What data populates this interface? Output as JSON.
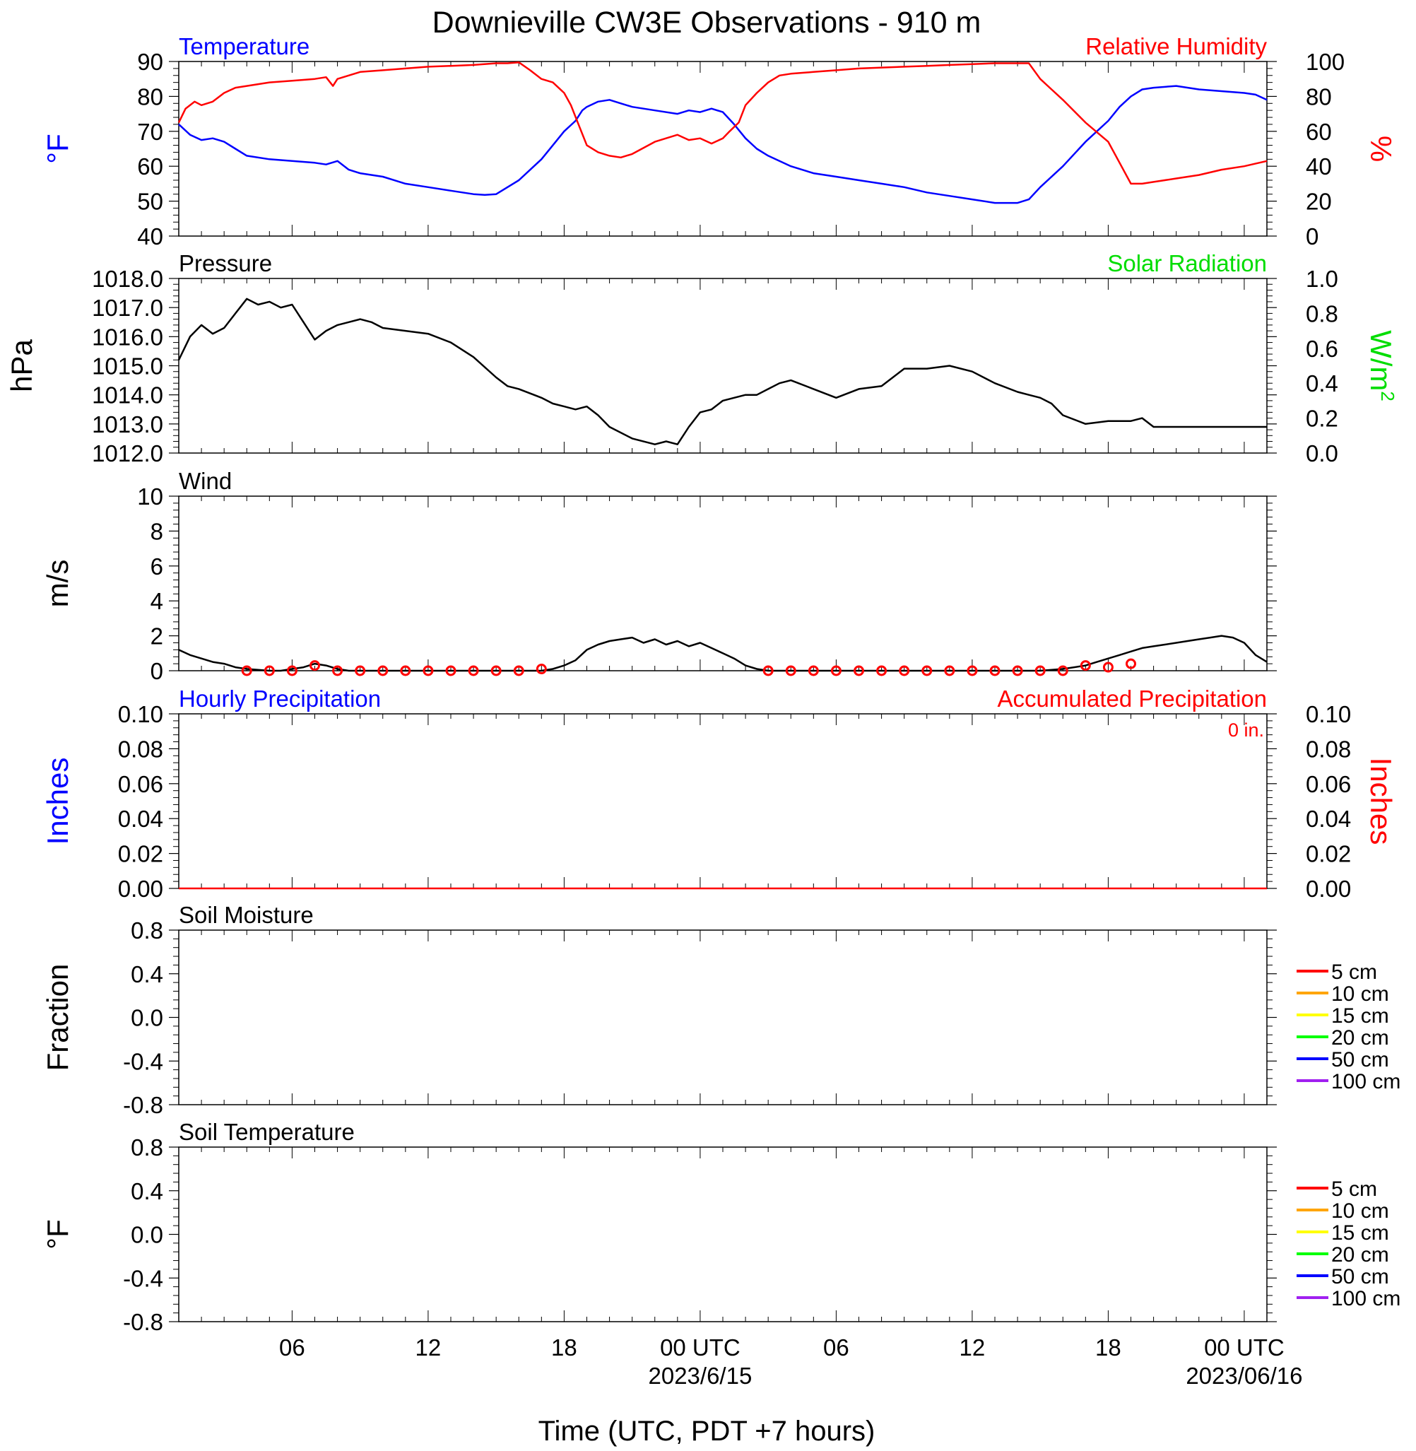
{
  "page_title": "Downieville CW3E Observations - 910 m",
  "x_axis": {
    "label": "Time (UTC, PDT +7 hours)",
    "range_hours": [
      0,
      48
    ],
    "ticks": [
      {
        "hour": 5,
        "label": "06",
        "date": ""
      },
      {
        "hour": 11,
        "label": "12",
        "date": ""
      },
      {
        "hour": 17,
        "label": "18",
        "date": ""
      },
      {
        "hour": 23,
        "label": "00 UTC",
        "date": "2023/6/15"
      },
      {
        "hour": 29,
        "label": "06",
        "date": ""
      },
      {
        "hour": 35,
        "label": "12",
        "date": ""
      },
      {
        "hour": 41,
        "label": "18",
        "date": ""
      },
      {
        "hour": 47,
        "label": "00 UTC",
        "date": "2023/06/16"
      }
    ]
  },
  "chart_data": [
    {
      "id": "temp_rh",
      "type": "line",
      "title_left": "Temperature",
      "title_right": "Relative Humidity",
      "ylabel_left": "°F",
      "ylabel_right": "%",
      "ylim_left": [
        40,
        90
      ],
      "ylim_right": [
        0,
        100
      ],
      "yticks_left": [
        90,
        80,
        70,
        60,
        50,
        40
      ],
      "yticks_right": [
        100,
        80,
        60,
        40,
        20,
        0
      ],
      "series": [
        {
          "name": "Temperature",
          "color": "#0000ff",
          "axis": "left",
          "x": [
            0,
            0.5,
            1,
            1.5,
            2,
            2.5,
            3,
            4,
            5,
            6,
            6.5,
            7,
            7.5,
            8,
            9,
            10,
            11,
            12,
            13,
            13.5,
            14,
            15,
            16,
            16.5,
            17,
            17.5,
            17.8,
            18,
            18.5,
            19,
            19.5,
            20,
            21,
            22,
            22.5,
            23,
            23.5,
            24,
            24.5,
            25,
            25.5,
            26,
            27,
            28,
            29,
            30,
            31,
            32,
            33,
            34,
            35,
            36,
            37,
            37.5,
            38,
            39,
            40,
            41,
            41.5,
            42,
            42.5,
            43,
            44,
            45,
            46,
            47,
            47.5,
            48
          ],
          "y": [
            72,
            69,
            67.5,
            68,
            67,
            65,
            63,
            62,
            61.5,
            61,
            60.5,
            61.5,
            59,
            58,
            57,
            55,
            54,
            53,
            52,
            51.8,
            52,
            56,
            62,
            66,
            70,
            73,
            76,
            77,
            78.5,
            79,
            78,
            77,
            76,
            75,
            76,
            75.5,
            76.5,
            75.5,
            72,
            68,
            65,
            63,
            60,
            58,
            57,
            56,
            55,
            54,
            52.5,
            51.5,
            50.5,
            49.5,
            49.5,
            50.5,
            54,
            60,
            67,
            73,
            77,
            80,
            82,
            82.5,
            83,
            82,
            81.5,
            81,
            80.5,
            79
          ]
        },
        {
          "name": "Relative Humidity",
          "color": "#ff0000",
          "axis": "right",
          "x": [
            0,
            0.3,
            0.7,
            1,
            1.5,
            2,
            2.5,
            3,
            4,
            5,
            6,
            6.5,
            6.8,
            7,
            8,
            9,
            10,
            11,
            12,
            13,
            14,
            14.5,
            15,
            15.5,
            16,
            16.5,
            17,
            17.3,
            17.6,
            18,
            18.5,
            19,
            19.5,
            20,
            21,
            22,
            22.5,
            23,
            23.5,
            24,
            24.3,
            24.7,
            25,
            25.5,
            26,
            26.5,
            27,
            28,
            29,
            30,
            31,
            32,
            33,
            34,
            35,
            36,
            37,
            37.5,
            38,
            38.5,
            39,
            40,
            41,
            41.5,
            42,
            42.5,
            43,
            44,
            45,
            46,
            47,
            48
          ],
          "y": [
            65,
            73,
            77,
            75,
            77,
            82,
            85,
            86,
            88,
            89,
            90,
            91,
            86,
            90,
            94,
            95,
            96,
            97,
            97.5,
            98,
            99,
            99,
            99.5,
            95,
            90,
            88,
            82,
            75,
            65,
            52,
            48,
            46,
            45,
            47,
            54,
            58,
            55,
            56,
            53,
            56,
            60,
            65,
            75,
            82,
            88,
            92,
            93,
            94,
            95,
            96,
            96.5,
            97,
            97.5,
            98,
            98.5,
            99,
            99,
            99,
            90,
            84,
            78,
            65,
            54,
            42,
            30,
            30,
            31,
            33,
            35,
            38,
            40,
            43
          ]
        }
      ]
    },
    {
      "id": "pressure",
      "type": "line",
      "title_left": "Pressure",
      "title_right": "Solar Radiation",
      "ylabel_left": "hPa",
      "ylabel_right": "W/m",
      "ylabel_right_sup": "2",
      "ylim_left": [
        1012,
        1018
      ],
      "ylim_right": [
        0,
        1
      ],
      "yticks_left": [
        "1018.0",
        "1017.0",
        "1016.0",
        "1015.0",
        "1014.0",
        "1013.0",
        "1012.0"
      ],
      "yticks_right": [
        "1.0",
        "0.8",
        "0.6",
        "0.4",
        "0.2",
        "0.0"
      ],
      "series": [
        {
          "name": "Pressure",
          "color": "#000000",
          "axis": "left",
          "x": [
            0,
            0.5,
            1,
            1.5,
            2,
            2.5,
            3,
            3.5,
            4,
            4.5,
            5,
            5.5,
            6,
            6.5,
            7,
            7.5,
            8,
            8.5,
            9,
            10,
            11,
            12,
            13,
            14,
            14.5,
            15,
            16,
            16.5,
            17,
            17.5,
            18,
            18.5,
            19,
            20,
            21,
            21.5,
            22,
            22.5,
            23,
            23.5,
            24,
            24.5,
            25,
            25.5,
            26,
            26.5,
            27,
            28,
            29,
            30,
            31,
            32,
            33,
            34,
            35,
            36,
            37,
            37.5,
            38,
            38.5,
            39,
            40,
            41,
            41.5,
            42,
            42.5,
            43,
            44,
            45,
            46,
            47,
            47.5,
            48
          ],
          "y": [
            1015.2,
            1016.0,
            1016.4,
            1016.1,
            1016.3,
            1016.8,
            1017.3,
            1017.1,
            1017.2,
            1017.0,
            1017.1,
            1016.5,
            1015.9,
            1016.2,
            1016.4,
            1016.5,
            1016.6,
            1016.5,
            1016.3,
            1016.2,
            1016.1,
            1015.8,
            1015.3,
            1014.6,
            1014.3,
            1014.2,
            1013.9,
            1013.7,
            1013.6,
            1013.5,
            1013.6,
            1013.3,
            1012.9,
            1012.5,
            1012.3,
            1012.4,
            1012.3,
            1012.9,
            1013.4,
            1013.5,
            1013.8,
            1013.9,
            1014.0,
            1014.0,
            1014.2,
            1014.4,
            1014.5,
            1014.2,
            1013.9,
            1014.2,
            1014.3,
            1014.9,
            1014.9,
            1015.0,
            1014.8,
            1014.4,
            1014.1,
            1014.0,
            1013.9,
            1013.7,
            1013.3,
            1013.0,
            1013.1,
            1013.1,
            1013.1,
            1013.2,
            1012.9,
            1012.9,
            1012.9,
            1012.9,
            1012.9,
            1012.9,
            1012.9
          ]
        }
      ]
    },
    {
      "id": "wind",
      "type": "line",
      "title_left": "Wind",
      "ylabel_left": "m/s",
      "ylim_left": [
        0,
        10
      ],
      "yticks_left": [
        10,
        8,
        6,
        4,
        2,
        0
      ],
      "series": [
        {
          "name": "Wind speed",
          "color": "#000000",
          "axis": "left",
          "x": [
            0,
            0.5,
            1,
            1.5,
            2,
            2.5,
            3,
            3.5,
            4,
            4.5,
            5,
            5.5,
            6,
            6.5,
            7,
            7.5,
            8,
            9,
            10,
            11,
            12,
            13,
            14,
            15,
            16,
            16.5,
            17,
            17.5,
            18,
            18.5,
            19,
            19.5,
            20,
            20.5,
            21,
            21.5,
            22,
            22.5,
            23,
            23.5,
            24,
            24.5,
            25,
            25.5,
            26,
            27,
            28,
            29,
            30,
            31,
            32,
            33,
            34,
            35,
            36,
            37,
            38,
            39,
            40,
            40.5,
            41,
            41.5,
            42,
            42.5,
            43,
            43.5,
            44,
            44.5,
            45,
            45.5,
            46,
            46.5,
            47,
            47.5,
            48
          ],
          "y": [
            1.2,
            0.9,
            0.7,
            0.5,
            0.4,
            0.2,
            0.1,
            0.05,
            0,
            0,
            0.1,
            0.2,
            0.4,
            0.3,
            0.1,
            0,
            0,
            0,
            0,
            0,
            0,
            0,
            0,
            0,
            0,
            0.1,
            0.3,
            0.6,
            1.2,
            1.5,
            1.7,
            1.8,
            1.9,
            1.6,
            1.8,
            1.5,
            1.7,
            1.4,
            1.6,
            1.3,
            1.0,
            0.7,
            0.3,
            0.1,
            0,
            0,
            0,
            0,
            0,
            0,
            0,
            0,
            0,
            0,
            0,
            0,
            0,
            0.1,
            0.3,
            0.5,
            0.7,
            0.9,
            1.1,
            1.3,
            1.4,
            1.5,
            1.6,
            1.7,
            1.8,
            1.9,
            2.0,
            1.9,
            1.6,
            0.9,
            0.5
          ]
        },
        {
          "name": "Wind markers",
          "color": "#ff0000",
          "axis": "left",
          "x": [
            3,
            4,
            5,
            6,
            7,
            8,
            9,
            10,
            11,
            12,
            13,
            14,
            15,
            16,
            26,
            27,
            28,
            29,
            30,
            31,
            32,
            33,
            34,
            35,
            36,
            37,
            38,
            39,
            40,
            41,
            42
          ],
          "y": [
            0,
            0,
            0,
            0.3,
            0,
            0,
            0,
            0,
            0,
            0,
            0,
            0,
            0,
            0.1,
            0,
            0,
            0,
            0,
            0,
            0,
            0,
            0,
            0,
            0,
            0,
            0,
            0,
            0,
            0.3,
            0.2,
            0.4
          ]
        }
      ]
    },
    {
      "id": "precip",
      "type": "line",
      "title_left": "Hourly Precipitation",
      "title_right": "Accumulated Precipitation",
      "annotation": "0 in.",
      "ylabel_left": "Inches",
      "ylabel_right": "Inches",
      "ylim_left": [
        0,
        0.1
      ],
      "ylim_right": [
        0,
        0.1
      ],
      "yticks_left": [
        "0.10",
        "0.08",
        "0.06",
        "0.04",
        "0.02",
        "0.00"
      ],
      "yticks_right": [
        "0.10",
        "0.08",
        "0.06",
        "0.04",
        "0.02",
        "0.00"
      ],
      "series": [
        {
          "name": "Accumulated Precipitation",
          "color": "#ff0000",
          "axis": "right",
          "x": [
            0,
            48
          ],
          "y": [
            0,
            0
          ]
        }
      ]
    },
    {
      "id": "soil_moisture",
      "type": "line",
      "title_left": "Soil Moisture",
      "ylabel_left": "Fraction",
      "ylim_left": [
        -1,
        1
      ],
      "yticks_left": [
        "0.8",
        "0.4",
        "0.0",
        "-0.4",
        "-0.8"
      ],
      "legend": [
        {
          "label": "5 cm",
          "color": "#ff0000"
        },
        {
          "label": "10 cm",
          "color": "#ffa500"
        },
        {
          "label": "15 cm",
          "color": "#ffff00"
        },
        {
          "label": "20 cm",
          "color": "#00ff00"
        },
        {
          "label": "50 cm",
          "color": "#0000ff"
        },
        {
          "label": "100 cm",
          "color": "#a020f0"
        }
      ],
      "series": []
    },
    {
      "id": "soil_temperature",
      "type": "line",
      "title_left": "Soil Temperature",
      "ylabel_left": "°F",
      "ylim_left": [
        -1,
        1
      ],
      "yticks_left": [
        "0.8",
        "0.4",
        "0.0",
        "-0.4",
        "-0.8"
      ],
      "legend": [
        {
          "label": "5 cm",
          "color": "#ff0000"
        },
        {
          "label": "10 cm",
          "color": "#ffa500"
        },
        {
          "label": "15 cm",
          "color": "#ffff00"
        },
        {
          "label": "20 cm",
          "color": "#00ff00"
        },
        {
          "label": "50 cm",
          "color": "#0000ff"
        },
        {
          "label": "100 cm",
          "color": "#a020f0"
        }
      ],
      "series": []
    }
  ]
}
